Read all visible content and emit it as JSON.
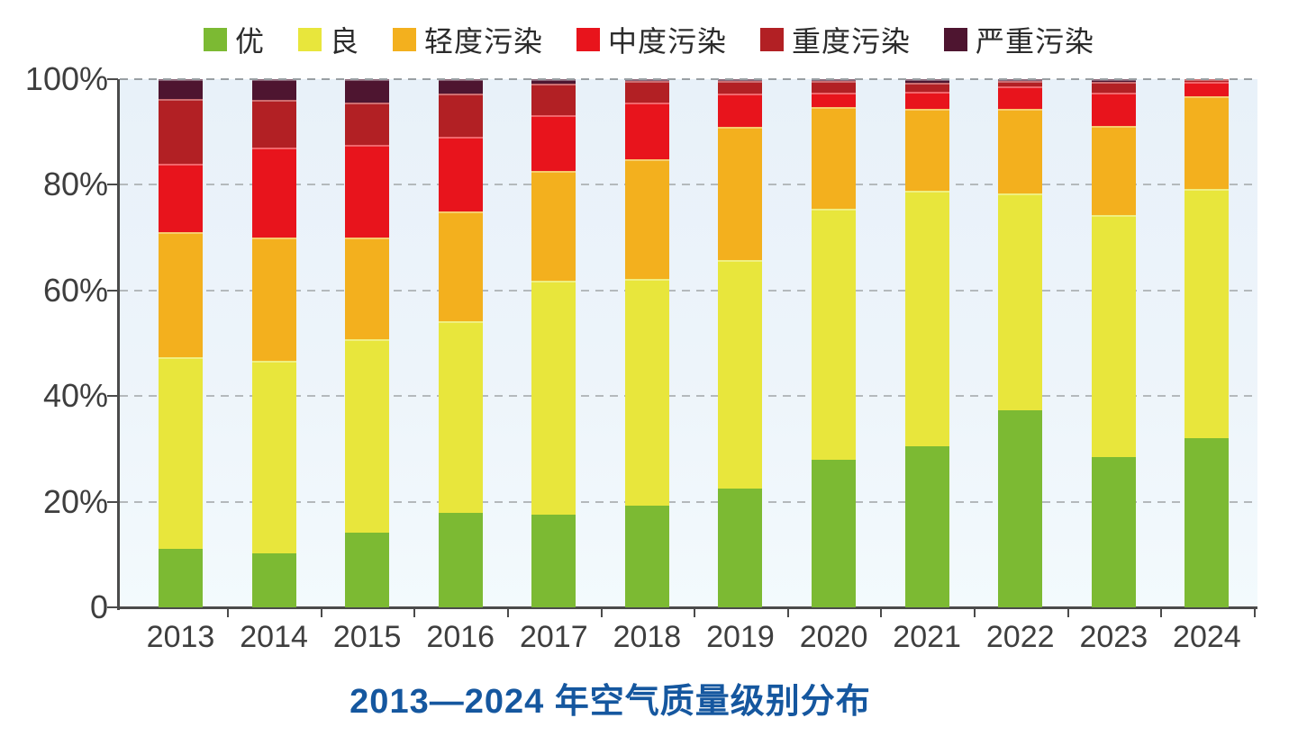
{
  "chart_data": {
    "type": "bar",
    "stacked": true,
    "unit": "percent",
    "title": "2013—2024 年空气质量级别分布",
    "categories": [
      "2013",
      "2014",
      "2015",
      "2016",
      "2017",
      "2018",
      "2019",
      "2020",
      "2021",
      "2022",
      "2023",
      "2024"
    ],
    "series": [
      {
        "name": "优",
        "color": "#7cba33",
        "values": [
          11.0,
          10.2,
          14.1,
          17.9,
          17.5,
          19.2,
          22.5,
          28.0,
          30.5,
          37.3,
          28.5,
          32.0
        ]
      },
      {
        "name": "良",
        "color": "#e8e63c",
        "values": [
          36.3,
          36.4,
          36.7,
          36.2,
          44.4,
          43.0,
          43.3,
          47.4,
          48.4,
          41.1,
          45.8,
          47.2
        ]
      },
      {
        "name": "轻度污染",
        "color": "#f3b01e",
        "values": [
          23.7,
          23.4,
          19.2,
          20.8,
          20.8,
          22.7,
          25.2,
          19.3,
          15.5,
          16.0,
          16.9,
          17.5
        ]
      },
      {
        "name": "中度污染",
        "color": "#e8141c",
        "values": [
          13.0,
          17.0,
          17.5,
          14.2,
          10.5,
          10.7,
          6.2,
          2.7,
          3.3,
          4.2,
          6.2,
          2.8
        ]
      },
      {
        "name": "重度污染",
        "color": "#b22024",
        "values": [
          12.2,
          9.0,
          8.1,
          8.2,
          6.0,
          4.1,
          2.4,
          2.3,
          1.7,
          1.0,
          2.1,
          0.5
        ]
      },
      {
        "name": "严重污染",
        "color": "#4e1530",
        "values": [
          3.8,
          4.0,
          4.4,
          2.7,
          0.8,
          0.3,
          0.4,
          0.3,
          0.6,
          0.4,
          0.5,
          0.0
        ]
      }
    ],
    "y_axis": {
      "min": 0,
      "max": 100,
      "ticks": [
        "0",
        "20%",
        "40%",
        "60%",
        "80%",
        "100%"
      ]
    },
    "grid": true,
    "legend_position": "top"
  }
}
